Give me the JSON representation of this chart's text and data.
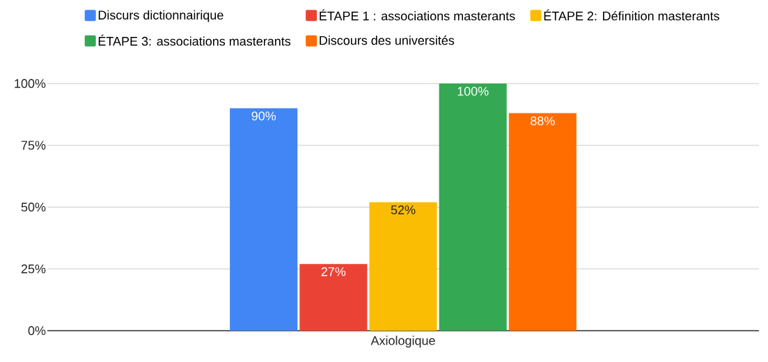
{
  "chart_data": {
    "type": "bar",
    "categories": [
      "Axiologique"
    ],
    "series": [
      {
        "name": "Discurs dictionnairique",
        "color": "#4285f4",
        "values": [
          90
        ],
        "value_labels": [
          "90%"
        ]
      },
      {
        "name": "ÉTAPE 1 : associations masterants",
        "color": "#ea4335",
        "values": [
          27
        ],
        "value_labels": [
          "27%"
        ]
      },
      {
        "name": "ÉTAPE 2: Définition masterants",
        "color": "#fbbc04",
        "values": [
          52
        ],
        "value_labels": [
          "52%"
        ]
      },
      {
        "name": "ÉTAPE 3: associations masterants",
        "color": "#34a853",
        "values": [
          100
        ],
        "value_labels": [
          "100%"
        ]
      },
      {
        "name": "Discours des universités",
        "color": "#ff6d01",
        "values": [
          88
        ],
        "value_labels": [
          "88%"
        ]
      }
    ],
    "ylim": [
      0,
      100
    ],
    "yticks": [
      {
        "value": 0,
        "label": "0%"
      },
      {
        "value": 25,
        "label": "25%"
      },
      {
        "value": 50,
        "label": "50%"
      },
      {
        "value": 75,
        "label": "75%"
      },
      {
        "value": 100,
        "label": "100%"
      }
    ],
    "grid": "y",
    "legend": "top"
  }
}
